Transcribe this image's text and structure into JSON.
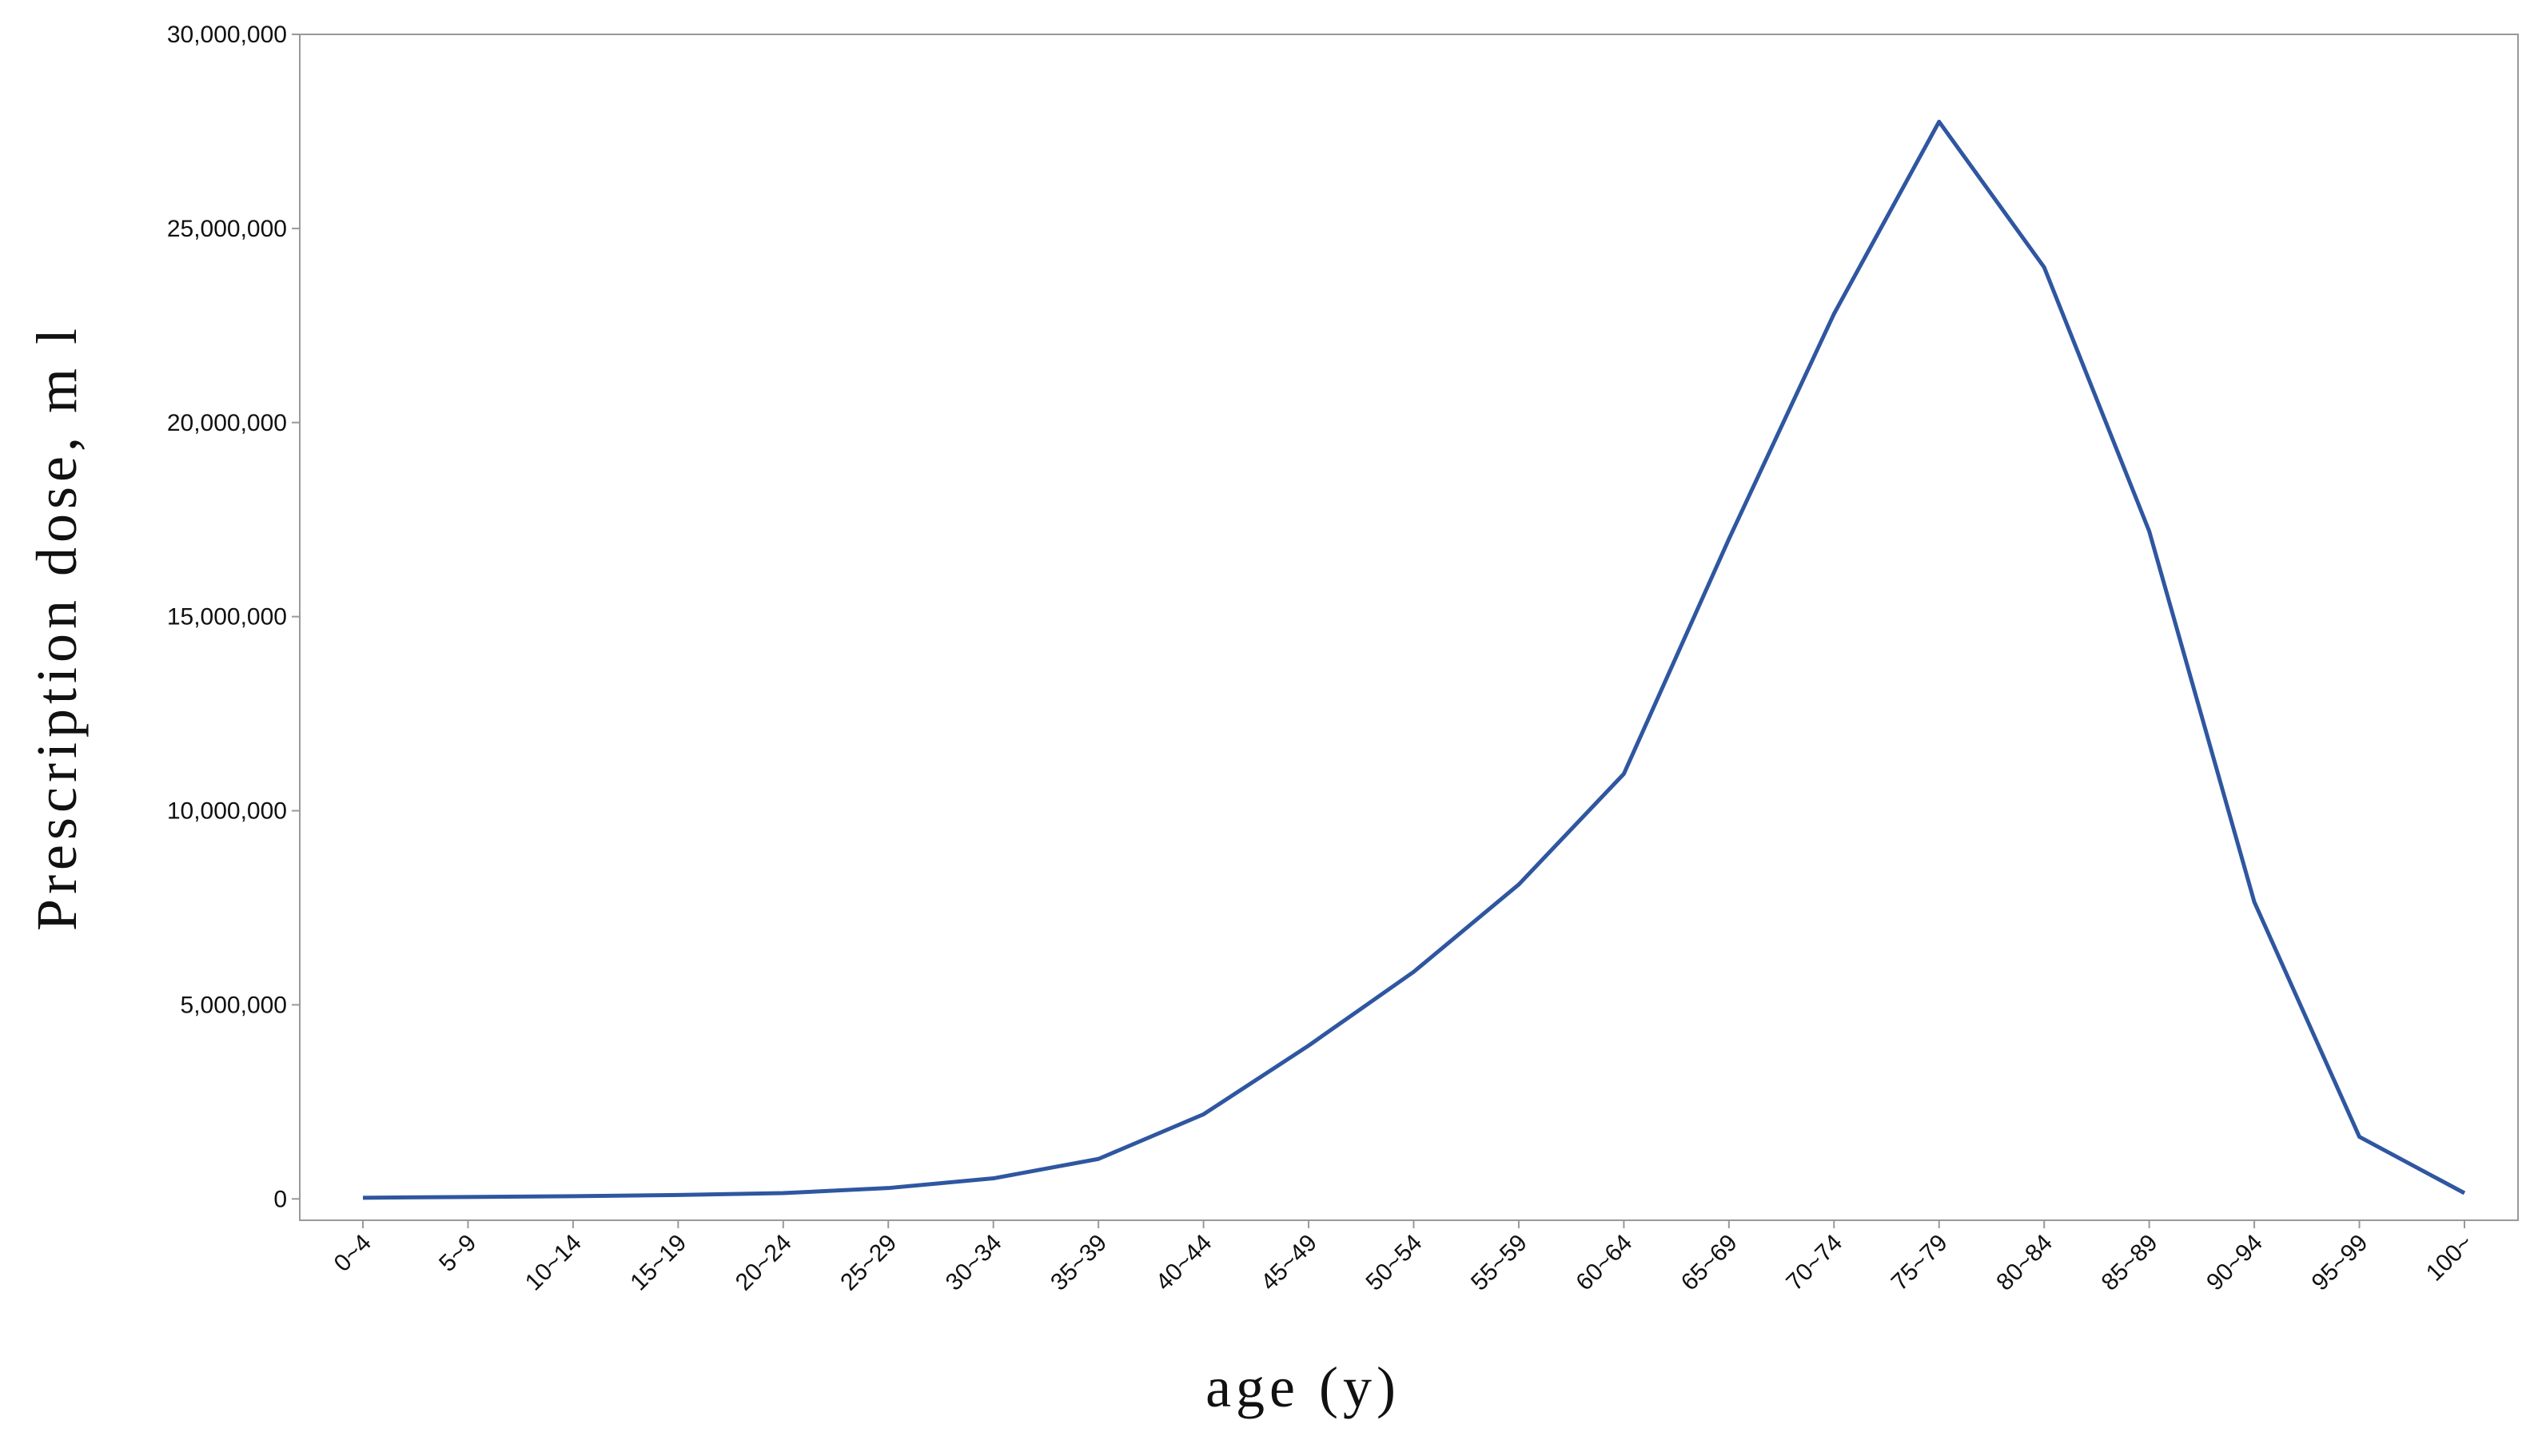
{
  "chart_data": {
    "type": "line",
    "x_label": "age (y)",
    "y_label": "Prescription dose, m l",
    "categories": [
      "0~4",
      "5~9",
      "10~14",
      "15~19",
      "20~24",
      "25~29",
      "30~34",
      "35~39",
      "40~44",
      "45~49",
      "50~54",
      "55~59",
      "60~64",
      "65~69",
      "70~74",
      "75~79",
      "80~84",
      "85~89",
      "90~94",
      "95~99",
      "100~"
    ],
    "series": [
      {
        "color": "#2f56a0",
        "values": [
          30000,
          50000,
          70000,
          100000,
          150000,
          280000,
          530000,
          1030000,
          2180000,
          3950000,
          5850000,
          8100000,
          10950000,
          17000000,
          22800000,
          27750000,
          24000000,
          17200000,
          7650000,
          1600000,
          150000
        ]
      }
    ],
    "ylim": [
      -550000,
      30000000
    ],
    "yticks": [
      0,
      {
        "value": 5000000,
        "label": "5,000,000"
      },
      {
        "value": 10000000,
        "label": "10,000,000"
      },
      {
        "value": 15000000,
        "label": "15,000,000"
      },
      {
        "value": 20000000,
        "label": "20,000,000"
      },
      {
        "value": 25000000,
        "label": "25,000,000"
      },
      {
        "value": 30000000,
        "label": "30,000,000"
      }
    ],
    "grid": false
  }
}
